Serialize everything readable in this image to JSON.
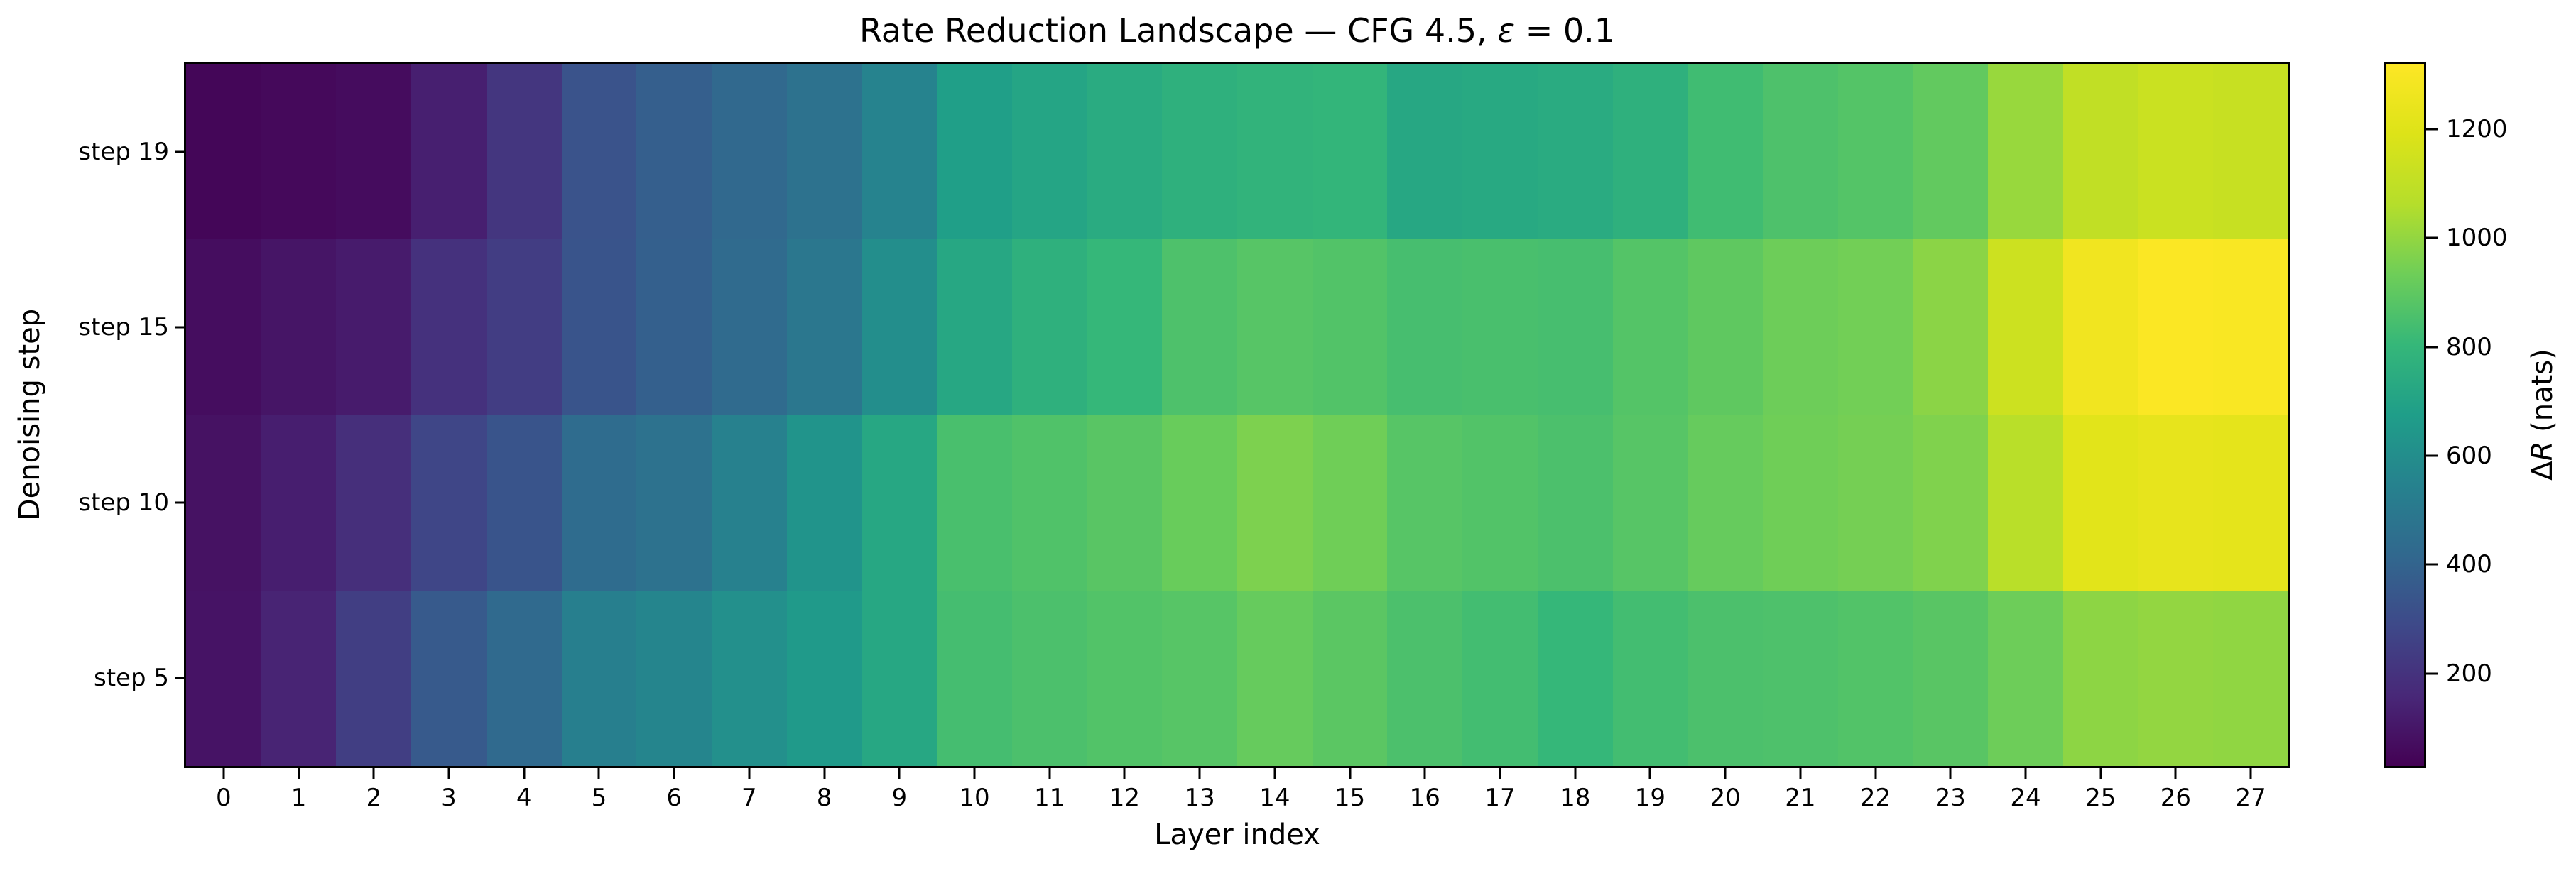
{
  "figure": {
    "background": "#ffffff",
    "title_parts": {
      "prefix": "Rate Reduction Landscape — CFG 4.5, ",
      "epsilon": "ε",
      "suffix": " = 0.1"
    },
    "colorbar_label_parts": {
      "delta": "Δ",
      "r": "R",
      "rest": " (nats)"
    }
  },
  "chart_data": {
    "type": "heatmap",
    "title": "Rate Reduction Landscape — CFG 4.5, ε = 0.1",
    "xlabel": "Layer index",
    "ylabel": "Denoising step",
    "colorbar_label": "ΔR (nats)",
    "colormap": "viridis",
    "colormap_stops": [
      "#440154",
      "#482878",
      "#3e4989",
      "#31688e",
      "#26828e",
      "#1f9e89",
      "#35b779",
      "#6ece58",
      "#b5de2b",
      "#dde318",
      "#fde725"
    ],
    "vmin": 30,
    "vmax": 1320,
    "grid": false,
    "x_ticks": [
      "0",
      "1",
      "2",
      "3",
      "4",
      "5",
      "6",
      "7",
      "8",
      "9",
      "10",
      "11",
      "12",
      "13",
      "14",
      "15",
      "16",
      "17",
      "18",
      "19",
      "20",
      "21",
      "22",
      "23",
      "24",
      "25",
      "26",
      "27"
    ],
    "y_ticks": [
      "step 19",
      "step 15",
      "step 10",
      "step 5"
    ],
    "colorbar_ticks": [
      200,
      400,
      600,
      800,
      1000,
      1200
    ],
    "rows": [
      {
        "label": "step 19",
        "values": [
          45,
          55,
          65,
          130,
          215,
          330,
          380,
          420,
          465,
          550,
          680,
          710,
          740,
          770,
          785,
          795,
          720,
          730,
          740,
          770,
          830,
          860,
          875,
          905,
          1010,
          1100,
          1130,
          1120
        ]
      },
      {
        "label": "step 15",
        "values": [
          70,
          95,
          115,
          195,
          240,
          335,
          385,
          430,
          490,
          600,
          720,
          770,
          805,
          860,
          880,
          870,
          845,
          850,
          845,
          875,
          900,
          930,
          940,
          985,
          1135,
          1270,
          1310,
          1305
        ]
      },
      {
        "label": "step 10",
        "values": [
          85,
          125,
          185,
          275,
          335,
          435,
          465,
          540,
          630,
          720,
          850,
          865,
          885,
          920,
          960,
          935,
          880,
          870,
          855,
          880,
          915,
          935,
          945,
          965,
          1075,
          1210,
          1230,
          1225
        ]
      },
      {
        "label": "step 5",
        "values": [
          90,
          145,
          245,
          360,
          425,
          530,
          560,
          610,
          655,
          720,
          840,
          855,
          870,
          880,
          915,
          890,
          855,
          835,
          805,
          835,
          855,
          860,
          870,
          885,
          930,
          990,
          1000,
          995
        ]
      }
    ]
  }
}
